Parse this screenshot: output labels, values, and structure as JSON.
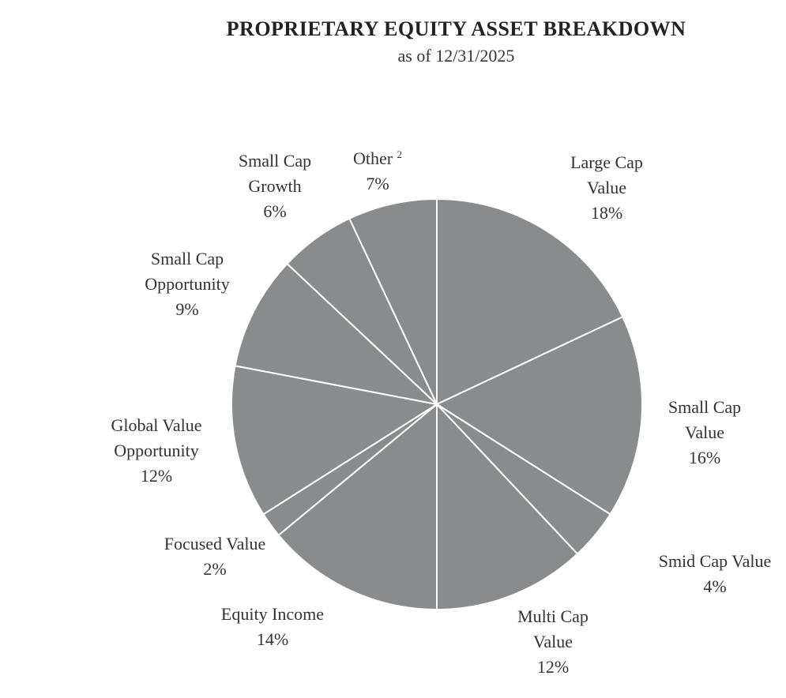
{
  "chart_data": {
    "type": "pie",
    "title": "PROPRIETARY EQUITY ASSET BREAKDOWN",
    "subtitle": "as of 12/31/2025",
    "categories": [
      "Large Cap Value",
      "Small Cap Value",
      "Smid Cap Value",
      "Multi Cap Value",
      "Equity Income",
      "Focused Value",
      "Global Value Opportunity",
      "Small Cap Opportunity",
      "Small Cap Growth",
      "Other"
    ],
    "category_superscripts": [
      null,
      null,
      null,
      null,
      null,
      null,
      null,
      null,
      null,
      "2"
    ],
    "values": [
      18,
      16,
      4,
      12,
      14,
      2,
      12,
      9,
      6,
      7
    ],
    "value_labels": [
      "18%",
      "16%",
      "4%",
      "12%",
      "14%",
      "2%",
      "12%",
      "9%",
      "6%",
      "7%"
    ],
    "color": "#8a8b8d"
  }
}
